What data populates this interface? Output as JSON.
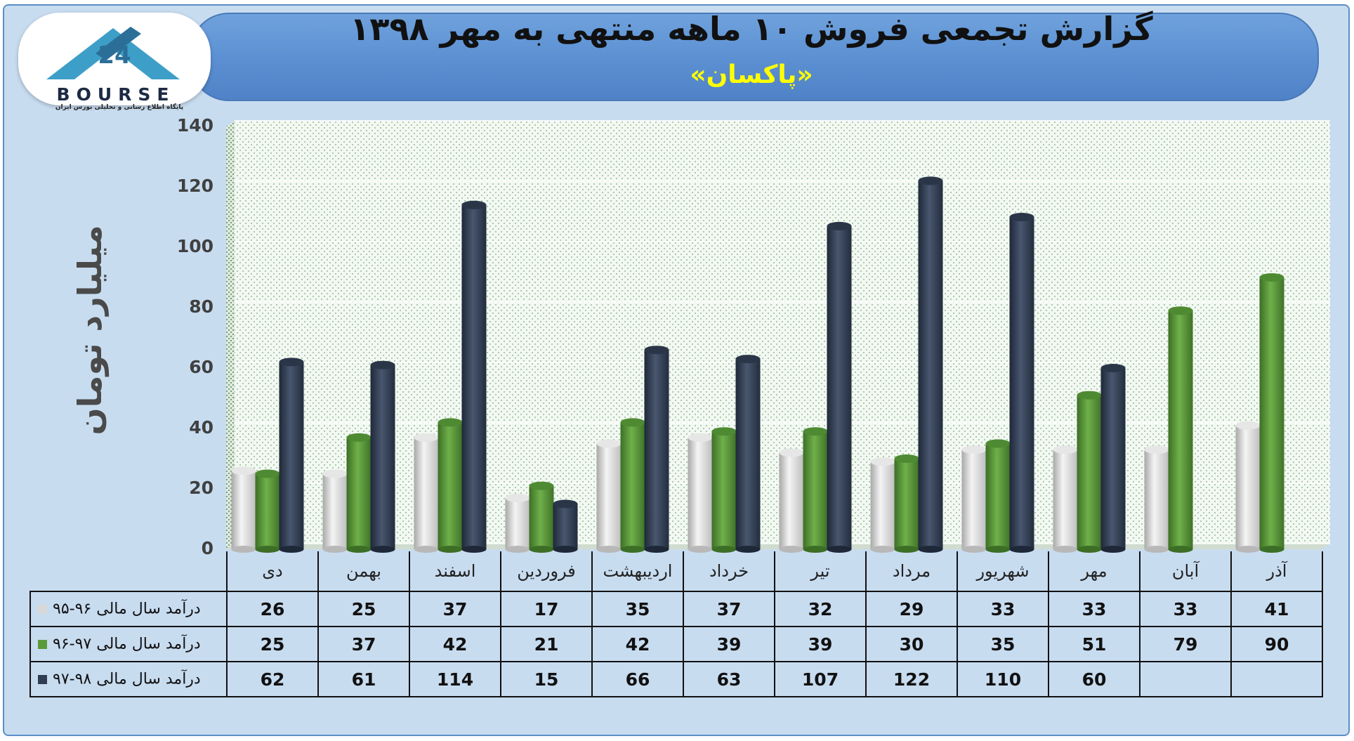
{
  "header": {
    "title": "گزارش تجمعی فروش ۱۰ ماهه منتهی به مهر ۱۳۹۸",
    "subtitle": "«پاکسان»"
  },
  "logo": {
    "word": "BOURSE",
    "caption": "پایگاه اطلاع رسانی و تحلیلی بورس ایران"
  },
  "colors": {
    "series": [
      "#d8d8d8",
      "#5a9a3a",
      "#2f3c52"
    ],
    "banner": "#5b8fd2",
    "subtitle": "#ffff00"
  },
  "chart_data": {
    "type": "bar",
    "title": "گزارش تجمعی فروش ۱۰ ماهه منتهی به مهر ۱۳۹۸",
    "ylabel": "میلیارد تومان",
    "xlabel": "",
    "ylim": [
      0,
      140
    ],
    "yticks": [
      0,
      20,
      40,
      60,
      80,
      100,
      120,
      140
    ],
    "grid": true,
    "categories": [
      "دی",
      "بهمن",
      "اسفند",
      "فروردین",
      "اردیبهشت",
      "خرداد",
      "تیر",
      "مرداد",
      "شهریور",
      "مهر",
      "آبان",
      "آذر"
    ],
    "series": [
      {
        "name": "درآمد سال مالی ۹۶-۹۵",
        "values": [
          26,
          25,
          37,
          17,
          35,
          37,
          32,
          29,
          33,
          33,
          33,
          41
        ]
      },
      {
        "name": "درآمد سال مالی ۹۷-۹۶",
        "values": [
          25,
          37,
          42,
          21,
          42,
          39,
          39,
          30,
          35,
          51,
          79,
          90
        ]
      },
      {
        "name": "درآمد سال مالی ۹۸-۹۷",
        "values": [
          62,
          61,
          114,
          15,
          66,
          63,
          107,
          122,
          110,
          60,
          null,
          null
        ]
      }
    ]
  }
}
